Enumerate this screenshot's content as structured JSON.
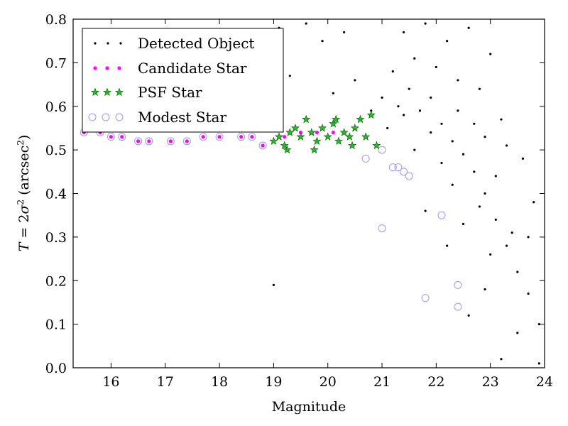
{
  "chart_data": {
    "type": "scatter",
    "xlabel": "Magnitude",
    "ylabel": "T = 2σ² (arcsec²)",
    "ylabel_parts": {
      "lhs": "T",
      "eq": " = 2",
      "sigma": "σ",
      "sup2": "2",
      "unit_open": " (arcsec",
      "unit_sup": "2",
      "unit_close": ")"
    },
    "xlim": [
      15.3,
      24
    ],
    "ylim": [
      0,
      0.8
    ],
    "xticks": [
      16,
      17,
      18,
      19,
      20,
      21,
      22,
      23,
      24
    ],
    "yticks": [
      0.0,
      0.1,
      0.2,
      0.3,
      0.4,
      0.5,
      0.6,
      0.7,
      0.8
    ],
    "xtick_labels": [
      "16",
      "17",
      "18",
      "19",
      "20",
      "21",
      "22",
      "23",
      "24"
    ],
    "ytick_labels": [
      "0.0",
      "0.1",
      "0.2",
      "0.3",
      "0.4",
      "0.5",
      "0.6",
      "0.7",
      "0.8"
    ],
    "grid": false,
    "legend_position": "top-left",
    "series": [
      {
        "name": "Detected Object",
        "marker": "dot",
        "color": "#000000",
        "points": [
          [
            19.0,
            0.19
          ],
          [
            20.8,
            0.59
          ],
          [
            21.1,
            0.55
          ],
          [
            21.3,
            0.6
          ],
          [
            21.5,
            0.64
          ],
          [
            21.7,
            0.59
          ],
          [
            21.9,
            0.62
          ],
          [
            22.1,
            0.56
          ],
          [
            22.3,
            0.52
          ],
          [
            22.5,
            0.49
          ],
          [
            22.7,
            0.45
          ],
          [
            22.9,
            0.4
          ],
          [
            23.1,
            0.34
          ],
          [
            23.3,
            0.28
          ],
          [
            23.5,
            0.22
          ],
          [
            23.7,
            0.17
          ],
          [
            23.9,
            0.1
          ],
          [
            21.4,
            0.77
          ],
          [
            21.8,
            0.79
          ],
          [
            22.2,
            0.75
          ],
          [
            22.6,
            0.78
          ],
          [
            23.0,
            0.72
          ],
          [
            21.2,
            0.68
          ],
          [
            21.6,
            0.71
          ],
          [
            22.0,
            0.69
          ],
          [
            22.4,
            0.66
          ],
          [
            22.8,
            0.64
          ],
          [
            23.2,
            0.57
          ],
          [
            23.6,
            0.48
          ],
          [
            23.8,
            0.38
          ],
          [
            22.6,
            0.12
          ],
          [
            23.2,
            0.02
          ],
          [
            23.5,
            0.08
          ],
          [
            23.9,
            0.01
          ],
          [
            22.9,
            0.18
          ],
          [
            23.4,
            0.31
          ],
          [
            22.2,
            0.28
          ],
          [
            21.8,
            0.36
          ],
          [
            22.5,
            0.33
          ],
          [
            23.0,
            0.26
          ],
          [
            20.3,
            0.77
          ],
          [
            19.9,
            0.75
          ],
          [
            20.1,
            0.63
          ],
          [
            20.5,
            0.66
          ],
          [
            19.6,
            0.79
          ],
          [
            19.3,
            0.67
          ],
          [
            19.1,
            0.78
          ],
          [
            22.7,
            0.56
          ],
          [
            22.1,
            0.47
          ],
          [
            21.6,
            0.5
          ],
          [
            22.3,
            0.42
          ],
          [
            22.8,
            0.37
          ],
          [
            23.1,
            0.44
          ],
          [
            23.3,
            0.51
          ],
          [
            21.0,
            0.62
          ],
          [
            21.4,
            0.58
          ],
          [
            21.9,
            0.54
          ],
          [
            22.4,
            0.59
          ],
          [
            22.9,
            0.53
          ],
          [
            23.7,
            0.3
          ]
        ]
      },
      {
        "name": "Candidate Star",
        "marker": "circle",
        "color": "#ff00ff",
        "points": [
          [
            15.5,
            0.54
          ],
          [
            15.8,
            0.54
          ],
          [
            16.0,
            0.53
          ],
          [
            16.2,
            0.53
          ],
          [
            16.5,
            0.52
          ],
          [
            16.7,
            0.52
          ],
          [
            17.1,
            0.52
          ],
          [
            17.4,
            0.52
          ],
          [
            17.7,
            0.53
          ],
          [
            18.0,
            0.53
          ],
          [
            18.4,
            0.53
          ],
          [
            18.6,
            0.53
          ],
          [
            18.8,
            0.51
          ],
          [
            19.2,
            0.53
          ],
          [
            19.5,
            0.54
          ],
          [
            19.8,
            0.54
          ],
          [
            20.1,
            0.54
          ],
          [
            20.3,
            0.54
          ]
        ]
      },
      {
        "name": "PSF Star",
        "marker": "star",
        "color": "#22bb22",
        "points": [
          [
            19.0,
            0.52
          ],
          [
            19.1,
            0.53
          ],
          [
            19.2,
            0.51
          ],
          [
            19.3,
            0.54
          ],
          [
            19.4,
            0.55
          ],
          [
            19.5,
            0.53
          ],
          [
            19.6,
            0.57
          ],
          [
            19.7,
            0.54
          ],
          [
            19.8,
            0.52
          ],
          [
            19.9,
            0.55
          ],
          [
            20.0,
            0.53
          ],
          [
            20.1,
            0.56
          ],
          [
            20.2,
            0.52
          ],
          [
            20.3,
            0.54
          ],
          [
            20.4,
            0.53
          ],
          [
            20.5,
            0.55
          ],
          [
            20.6,
            0.57
          ],
          [
            20.7,
            0.53
          ],
          [
            20.8,
            0.58
          ],
          [
            20.9,
            0.51
          ],
          [
            19.25,
            0.5
          ],
          [
            19.75,
            0.5
          ],
          [
            20.45,
            0.51
          ],
          [
            20.15,
            0.57
          ]
        ]
      },
      {
        "name": "Modest Star",
        "marker": "hollow-circle",
        "color": "#9999ff",
        "points": [
          [
            15.5,
            0.54
          ],
          [
            15.8,
            0.54
          ],
          [
            16.0,
            0.53
          ],
          [
            16.2,
            0.53
          ],
          [
            16.5,
            0.52
          ],
          [
            16.7,
            0.52
          ],
          [
            17.1,
            0.52
          ],
          [
            17.4,
            0.52
          ],
          [
            17.7,
            0.53
          ],
          [
            18.0,
            0.53
          ],
          [
            18.4,
            0.53
          ],
          [
            18.6,
            0.53
          ],
          [
            18.8,
            0.51
          ],
          [
            20.7,
            0.48
          ],
          [
            21.0,
            0.5
          ],
          [
            21.2,
            0.46
          ],
          [
            21.3,
            0.46
          ],
          [
            21.4,
            0.45
          ],
          [
            21.5,
            0.44
          ],
          [
            21.0,
            0.32
          ],
          [
            22.1,
            0.35
          ],
          [
            21.8,
            0.16
          ],
          [
            22.4,
            0.19
          ],
          [
            22.4,
            0.14
          ]
        ]
      }
    ]
  }
}
